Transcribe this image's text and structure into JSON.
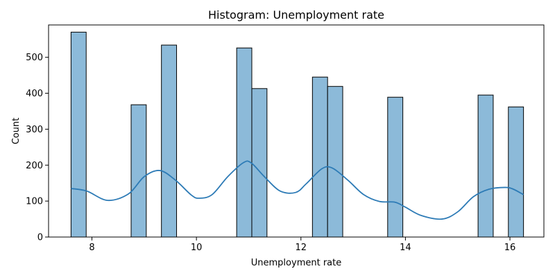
{
  "chart_data": {
    "type": "bar",
    "title": "Histogram: Unemployment rate",
    "xlabel": "Unemployment rate",
    "ylabel": "Count",
    "xlim": [
      7.17,
      16.65
    ],
    "ylim": [
      0,
      590
    ],
    "x_ticks": [
      8,
      10,
      12,
      14,
      16
    ],
    "y_ticks": [
      0,
      100,
      200,
      300,
      400,
      500
    ],
    "grid": false,
    "legend": "none",
    "bin_width": 0.29,
    "bars": [
      {
        "x0": 7.6,
        "x1": 7.89,
        "count": 570
      },
      {
        "x0": 8.75,
        "x1": 9.04,
        "count": 368
      },
      {
        "x0": 9.33,
        "x1": 9.62,
        "count": 534
      },
      {
        "x0": 10.77,
        "x1": 11.06,
        "count": 526
      },
      {
        "x0": 11.06,
        "x1": 11.35,
        "count": 413
      },
      {
        "x0": 12.22,
        "x1": 12.51,
        "count": 445
      },
      {
        "x0": 12.51,
        "x1": 12.8,
        "count": 419
      },
      {
        "x0": 13.66,
        "x1": 13.95,
        "count": 389
      },
      {
        "x0": 15.39,
        "x1": 15.68,
        "count": 395
      },
      {
        "x0": 15.97,
        "x1": 16.26,
        "count": 362
      }
    ],
    "kde": {
      "name": "",
      "x": [
        7.6,
        7.9,
        8.3,
        8.7,
        9.0,
        9.3,
        9.6,
        9.9,
        10.05,
        10.3,
        10.6,
        10.9,
        11.05,
        11.3,
        11.6,
        11.9,
        12.1,
        12.4,
        12.6,
        12.9,
        13.2,
        13.5,
        13.8,
        14.0,
        14.3,
        14.7,
        15.0,
        15.3,
        15.6,
        15.9,
        16.05,
        16.26
      ],
      "y": [
        135,
        128,
        102,
        120,
        168,
        185,
        158,
        117,
        108,
        118,
        168,
        207,
        206,
        168,
        128,
        124,
        148,
        190,
        192,
        158,
        118,
        99,
        97,
        83,
        60,
        50,
        70,
        112,
        133,
        138,
        134,
        118
      ]
    },
    "colors": {
      "bar_fill": "#8cbad9",
      "bar_edge": "#000000",
      "kde_line": "#2d7bb6"
    }
  }
}
